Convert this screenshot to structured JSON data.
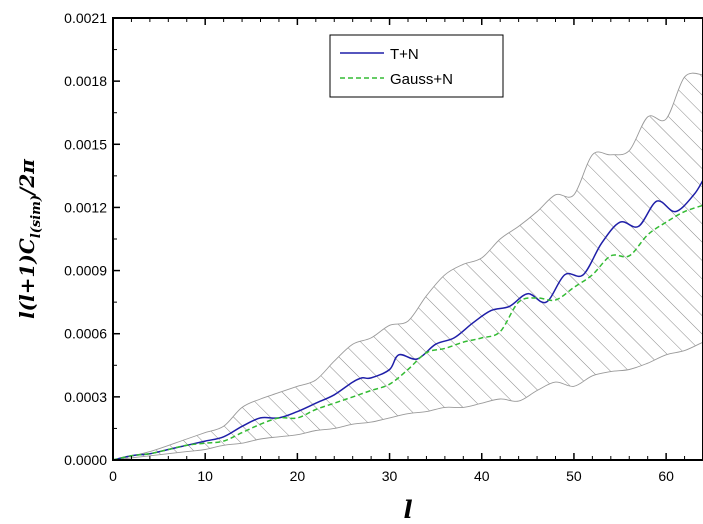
{
  "chart_data": {
    "type": "line",
    "xlabel": "l",
    "ylabel": "l(l+1)C",
    "ylabel_sub": "l(sim)",
    "ylabel_tail": "/2π",
    "xlim": [
      0,
      64
    ],
    "ylim": [
      0,
      0.0021
    ],
    "x_ticks": [
      0,
      10,
      20,
      30,
      40,
      50,
      60
    ],
    "y_ticks": [
      "0.0000",
      "0.0003",
      "0.0006",
      "0.0009",
      "0.0012",
      "0.0015",
      "0.0018",
      "0.0021"
    ],
    "legend_position": "top-center",
    "series": [
      {
        "name": "T+N",
        "color": "#1f1fa8",
        "style": "solid",
        "x": [
          0,
          2,
          4,
          6,
          8,
          10,
          12,
          14,
          16,
          18,
          20,
          22,
          24,
          26,
          27,
          28,
          30,
          31,
          33,
          35,
          37,
          39,
          41,
          43,
          45,
          47,
          49,
          51,
          53,
          55,
          57,
          59,
          61,
          63,
          64
        ],
        "y": [
          0.0,
          2e-05,
          3e-05,
          5e-05,
          7e-05,
          9e-05,
          0.00011,
          0.00016,
          0.0002,
          0.0002,
          0.00023,
          0.00027,
          0.00031,
          0.00037,
          0.00039,
          0.00039,
          0.00043,
          0.0005,
          0.00048,
          0.00055,
          0.00058,
          0.00065,
          0.00071,
          0.00073,
          0.00079,
          0.00075,
          0.00088,
          0.00088,
          0.00103,
          0.00113,
          0.00111,
          0.00123,
          0.00118,
          0.00126,
          0.00133
        ]
      },
      {
        "name": "Gauss+N",
        "color": "#33bb33",
        "style": "dashed",
        "x": [
          0,
          2,
          4,
          6,
          8,
          10,
          12,
          14,
          16,
          18,
          20,
          22,
          24,
          26,
          28,
          30,
          32,
          34,
          36,
          38,
          40,
          42,
          44,
          46,
          48,
          50,
          52,
          54,
          56,
          58,
          60,
          62,
          64
        ],
        "y": [
          0.0,
          2e-05,
          3e-05,
          5e-05,
          7e-05,
          8e-05,
          9e-05,
          0.00013,
          0.00017,
          0.0002,
          0.0002,
          0.00024,
          0.00027,
          0.0003,
          0.00033,
          0.00036,
          0.00043,
          0.00051,
          0.00053,
          0.00056,
          0.00058,
          0.00061,
          0.00075,
          0.00077,
          0.00076,
          0.00082,
          0.00088,
          0.00097,
          0.00097,
          0.00107,
          0.00113,
          0.00118,
          0.00121
        ]
      }
    ],
    "band": {
      "x": [
        0,
        4,
        8,
        10,
        12,
        14,
        16,
        18,
        20,
        22,
        24,
        26,
        28,
        30,
        32,
        34,
        36,
        38,
        40,
        42,
        44,
        46,
        48,
        50,
        52,
        54,
        56,
        58,
        60,
        62,
        64
      ],
      "upper": [
        0.0,
        4e-05,
        0.0001,
        0.00013,
        0.00016,
        0.00025,
        0.00029,
        0.00032,
        0.00035,
        0.00038,
        0.00047,
        0.00055,
        0.00058,
        0.00064,
        0.00066,
        0.00078,
        0.00088,
        0.00093,
        0.00096,
        0.00105,
        0.00111,
        0.00118,
        0.00126,
        0.00126,
        0.00145,
        0.00145,
        0.00147,
        0.00163,
        0.00162,
        0.00182,
        0.00183
      ],
      "lower": [
        0.0,
        2e-05,
        4e-05,
        5e-05,
        7e-05,
        8e-05,
        0.0001,
        0.00011,
        0.00012,
        0.00014,
        0.00015,
        0.00017,
        0.00018,
        0.0002,
        0.00022,
        0.00023,
        0.00025,
        0.00025,
        0.00027,
        0.00029,
        0.00028,
        0.00033,
        0.00037,
        0.00035,
        0.0004,
        0.00042,
        0.00043,
        0.00046,
        0.0005,
        0.00052,
        0.00056
      ]
    },
    "colors": {
      "band_hatch": "#555555",
      "band_edge": "#9a9a9a",
      "axis": "#000000"
    }
  }
}
